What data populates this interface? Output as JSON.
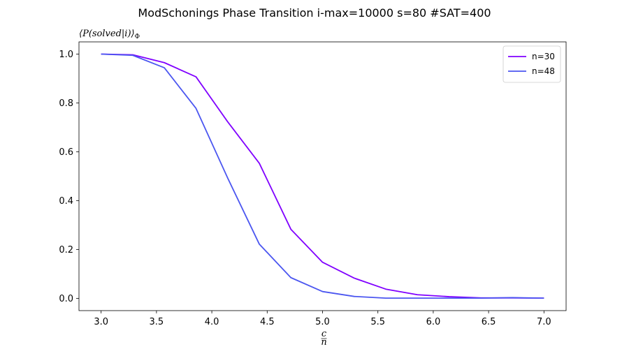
{
  "chart_data": {
    "type": "line",
    "title": "ModSchonings Phase Transition  i-max=10000 s=80 #SAT=400",
    "ylabel": "⟨P(solved|i)⟩Φ",
    "xlabel": "c/n",
    "xlim": [
      2.8,
      7.2
    ],
    "ylim": [
      -0.05,
      1.05
    ],
    "xticks": [
      3.0,
      3.5,
      4.0,
      4.5,
      5.0,
      5.5,
      6.0,
      6.5,
      7.0
    ],
    "xtick_labels": [
      "3.0",
      "3.5",
      "4.0",
      "4.5",
      "5.0",
      "5.5",
      "6.0",
      "6.5",
      "7.0"
    ],
    "yticks": [
      0.0,
      0.2,
      0.4,
      0.6,
      0.8,
      1.0
    ],
    "ytick_labels": [
      "0.0",
      "0.2",
      "0.4",
      "0.6",
      "0.8",
      "1.0"
    ],
    "grid": false,
    "legend_position": "top-right",
    "x": [
      3.0,
      3.286,
      3.571,
      3.857,
      4.143,
      4.429,
      4.714,
      5.0,
      5.286,
      5.571,
      5.857,
      6.143,
      6.429,
      6.714,
      7.0
    ],
    "series": [
      {
        "name": "n=30",
        "color": "#8000ff",
        "values": [
          1.0,
          0.997,
          0.965,
          0.907,
          0.723,
          0.553,
          0.283,
          0.148,
          0.083,
          0.038,
          0.015,
          0.007,
          0.002,
          0.002,
          0.001
        ]
      },
      {
        "name": "n=48",
        "color": "#4b56f0",
        "values": [
          1.0,
          0.995,
          0.944,
          0.778,
          0.493,
          0.222,
          0.085,
          0.028,
          0.008,
          0.001,
          0.001,
          0.001,
          0.001,
          0.003,
          0.001
        ]
      }
    ]
  }
}
